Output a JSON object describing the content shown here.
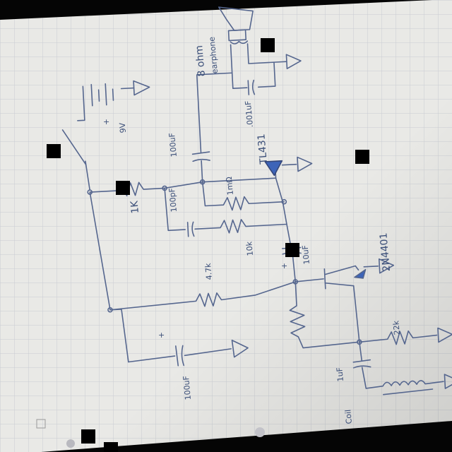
{
  "labels": {
    "speaker_desc_1": "8 ohm",
    "speaker_desc_2": "earphone",
    "cap_001": ".001uF",
    "cap_100u_top": "100uF",
    "ic_name": "TL431",
    "battery": "9V",
    "res_1k": "1K",
    "cap_100p": "100pF",
    "res_1m": "1mΩ",
    "res_10k": "10k",
    "cap_10u": "10uF",
    "transistor": "2N4401",
    "res_4k7": "4.7k",
    "res_22k": "22k",
    "cap_1u": "1uF",
    "coil": "Coil",
    "cap_100u_bottom": "100uF",
    "plus": "+"
  },
  "colors": {
    "paper": "#e9e9e6",
    "grid": "#c9ccd2",
    "ink": "#55668e",
    "ink_dark": "#35477a",
    "ic_fill": "#3d64b8",
    "redaction": "#000000",
    "background": "#050505"
  }
}
